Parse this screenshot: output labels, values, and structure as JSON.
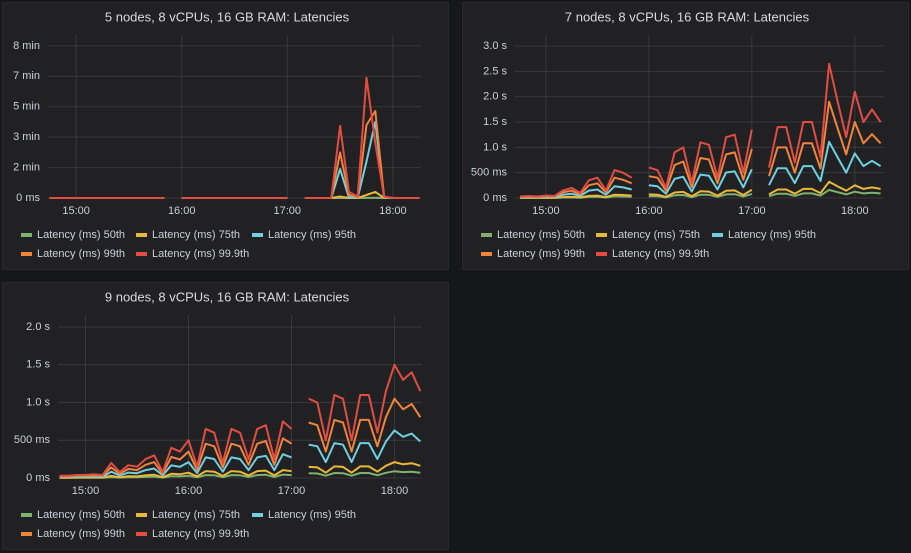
{
  "chart_data": [
    {
      "type": "line",
      "title": "5 nodes, 8 vCPUs, 16 GB RAM: Latencies",
      "grid": true,
      "legend": "bottom",
      "x": [
        "14:45",
        "14:50",
        "14:55",
        "15:00",
        "15:05",
        "15:10",
        "15:15",
        "15:20",
        "15:25",
        "15:30",
        "15:35",
        "15:40",
        "15:45",
        "15:50",
        "15:55",
        "16:00",
        "16:05",
        "16:10",
        "16:15",
        "16:20",
        "16:25",
        "16:30",
        "16:35",
        "16:40",
        "16:45",
        "16:50",
        "16:55",
        "17:00",
        "17:05",
        "17:10",
        "17:15",
        "17:20",
        "17:25",
        "17:30",
        "17:35",
        "17:40",
        "17:45",
        "17:50",
        "17:55",
        "18:00",
        "18:05",
        "18:10",
        "18:15"
      ],
      "xlim": [
        "14:44",
        "18:16"
      ],
      "xticks": [
        "15:00",
        "16:00",
        "17:00",
        "18:00"
      ],
      "ylim": [
        0,
        516000
      ],
      "yticks": [
        {
          "value": 0,
          "label": "0 ms"
        },
        {
          "value": 100000,
          "label": "2 min"
        },
        {
          "value": 200000,
          "label": "3 min"
        },
        {
          "value": 300000,
          "label": "5 min"
        },
        {
          "value": 400000,
          "label": "7 min"
        },
        {
          "value": 500000,
          "label": "8 min"
        }
      ],
      "series": [
        {
          "name": "Latency (ms) 50th",
          "color": "#7eb26d",
          "values": [
            5,
            5,
            5,
            5,
            5,
            5,
            5,
            5,
            5,
            5,
            5,
            5,
            5,
            5,
            null,
            5,
            5,
            5,
            5,
            5,
            5,
            5,
            5,
            5,
            5,
            5,
            5,
            5,
            null,
            5,
            5,
            5,
            5,
            200,
            20,
            10,
            300,
            500,
            10,
            5,
            5,
            5,
            5
          ]
        },
        {
          "name": "Latency (ms) 75th",
          "color": "#eab839",
          "values": [
            10,
            10,
            10,
            10,
            10,
            10,
            10,
            10,
            10,
            10,
            10,
            10,
            10,
            10,
            null,
            10,
            10,
            10,
            10,
            10,
            10,
            10,
            10,
            10,
            10,
            10,
            10,
            10,
            null,
            10,
            10,
            10,
            10,
            5000,
            100,
            50,
            10000,
            20000,
            50,
            10,
            10,
            10,
            10
          ]
        },
        {
          "name": "Latency (ms) 95th",
          "color": "#6ed0e0",
          "values": [
            30,
            30,
            30,
            30,
            30,
            30,
            30,
            30,
            30,
            30,
            30,
            30,
            30,
            30,
            null,
            30,
            30,
            30,
            30,
            30,
            30,
            30,
            30,
            30,
            30,
            30,
            30,
            30,
            null,
            30,
            30,
            30,
            30,
            95000,
            2000,
            1000,
            120000,
            250000,
            1000,
            30,
            30,
            30,
            30
          ]
        },
        {
          "name": "Latency (ms) 99th",
          "color": "#ef843c",
          "values": [
            60,
            60,
            60,
            60,
            60,
            60,
            60,
            60,
            60,
            60,
            60,
            60,
            60,
            60,
            null,
            60,
            60,
            60,
            60,
            60,
            60,
            60,
            60,
            60,
            60,
            60,
            60,
            60,
            null,
            60,
            60,
            60,
            60,
            150000,
            10000,
            3000,
            240000,
            286000,
            3000,
            60,
            60,
            60,
            60
          ]
        },
        {
          "name": "Latency (ms) 99.9th",
          "color": "#e24d42",
          "values": [
            150,
            150,
            150,
            150,
            150,
            150,
            150,
            150,
            150,
            150,
            150,
            150,
            150,
            150,
            null,
            150,
            150,
            150,
            150,
            150,
            150,
            150,
            150,
            150,
            150,
            150,
            150,
            150,
            null,
            150,
            150,
            150,
            150,
            237000,
            20000,
            5000,
            395000,
            180000,
            5000,
            150,
            150,
            150,
            150
          ]
        }
      ]
    },
    {
      "type": "line",
      "title": "7 nodes, 8 vCPUs, 16 GB RAM: Latencies",
      "grid": true,
      "legend": "bottom",
      "x": [
        "14:45",
        "14:50",
        "14:55",
        "15:00",
        "15:05",
        "15:10",
        "15:15",
        "15:20",
        "15:25",
        "15:30",
        "15:35",
        "15:40",
        "15:45",
        "15:50",
        "15:55",
        "16:00",
        "16:05",
        "16:10",
        "16:15",
        "16:20",
        "16:25",
        "16:30",
        "16:35",
        "16:40",
        "16:45",
        "16:50",
        "16:55",
        "17:00",
        "17:05",
        "17:10",
        "17:15",
        "17:20",
        "17:25",
        "17:30",
        "17:35",
        "17:40",
        "17:45",
        "17:50",
        "17:55",
        "18:00",
        "18:05",
        "18:10",
        "18:15"
      ],
      "xlim": [
        "14:42",
        "18:17"
      ],
      "xticks": [
        "15:00",
        "16:00",
        "17:00",
        "18:00"
      ],
      "ylim": [
        0,
        3100
      ],
      "yticks": [
        {
          "value": 0,
          "label": "0 ms"
        },
        {
          "value": 500,
          "label": "500 ms"
        },
        {
          "value": 1000,
          "label": "1.0 s"
        },
        {
          "value": 1500,
          "label": "1.5 s"
        },
        {
          "value": 2000,
          "label": "2.0 s"
        },
        {
          "value": 2500,
          "label": "2.5 s"
        },
        {
          "value": 3000,
          "label": "3.0 s"
        }
      ],
      "series": [
        {
          "name": "Latency (ms) 50th",
          "color": "#7eb26d",
          "values": [
            2,
            2,
            2,
            3,
            2,
            9,
            12,
            6,
            21,
            24,
            9,
            33,
            30,
            24,
            null,
            36,
            33,
            12,
            54,
            60,
            18,
            66,
            63,
            24,
            72,
            75,
            30,
            81,
            null,
            36,
            84,
            84,
            42,
            90,
            90,
            48,
            160,
            115,
            72,
            125,
            90,
            105,
            90
          ]
        },
        {
          "name": "Latency (ms) 75th",
          "color": "#eab839",
          "values": [
            4,
            5,
            4,
            6,
            5,
            18,
            24,
            12,
            42,
            48,
            18,
            66,
            60,
            48,
            null,
            72,
            66,
            24,
            108,
            120,
            36,
            132,
            126,
            48,
            144,
            150,
            60,
            162,
            null,
            72,
            168,
            168,
            84,
            180,
            180,
            96,
            320,
            230,
            145,
            250,
            180,
            210,
            180
          ]
        },
        {
          "name": "Latency (ms) 95th",
          "color": "#6ed0e0",
          "values": [
            13,
            17,
            13,
            21,
            17,
            63,
            84,
            42,
            147,
            168,
            63,
            231,
            210,
            168,
            null,
            252,
            231,
            84,
            378,
            420,
            126,
            462,
            441,
            168,
            504,
            525,
            210,
            567,
            null,
            252,
            588,
            588,
            294,
            630,
            630,
            336,
            1110,
            800,
            500,
            880,
            630,
            735,
            630
          ]
        },
        {
          "name": "Latency (ms) 99th",
          "color": "#ef843c",
          "values": [
            20,
            30,
            20,
            35,
            30,
            110,
            145,
            70,
            250,
            290,
            110,
            400,
            360,
            290,
            null,
            430,
            400,
            145,
            650,
            720,
            215,
            790,
            760,
            290,
            860,
            900,
            360,
            970,
            null,
            430,
            1000,
            1000,
            500,
            1080,
            1080,
            580,
            1900,
            1370,
            860,
            1500,
            1080,
            1260,
            1080
          ]
        },
        {
          "name": "Latency (ms) 99.9th",
          "color": "#e24d42",
          "values": [
            30,
            40,
            30,
            50,
            40,
            150,
            200,
            100,
            350,
            400,
            150,
            550,
            500,
            400,
            null,
            600,
            550,
            200,
            900,
            1000,
            300,
            1100,
            1050,
            400,
            1200,
            1250,
            500,
            1350,
            null,
            600,
            1400,
            1400,
            700,
            1500,
            1500,
            800,
            2650,
            1900,
            1200,
            2100,
            1500,
            1750,
            1500
          ]
        }
      ]
    },
    {
      "type": "line",
      "title": "9 nodes, 8 vCPUs, 16 GB RAM: Latencies",
      "grid": true,
      "legend": "bottom",
      "x": [
        "14:45",
        "14:50",
        "14:55",
        "15:00",
        "15:05",
        "15:10",
        "15:15",
        "15:20",
        "15:25",
        "15:30",
        "15:35",
        "15:40",
        "15:45",
        "15:50",
        "15:55",
        "16:00",
        "16:05",
        "16:10",
        "16:15",
        "16:20",
        "16:25",
        "16:30",
        "16:35",
        "16:40",
        "16:45",
        "16:50",
        "16:55",
        "17:00",
        "17:05",
        "17:10",
        "17:15",
        "17:20",
        "17:25",
        "17:30",
        "17:35",
        "17:40",
        "17:45",
        "17:50",
        "17:55",
        "18:00",
        "18:05",
        "18:10",
        "18:15"
      ],
      "xlim": [
        "14:44",
        "18:16"
      ],
      "xticks": [
        "15:00",
        "16:00",
        "17:00",
        "18:00"
      ],
      "ylim": [
        0,
        2080
      ],
      "yticks": [
        {
          "value": 0,
          "label": "0 ms"
        },
        {
          "value": 500,
          "label": "500 ms"
        },
        {
          "value": 1000,
          "label": "1.0 s"
        },
        {
          "value": 1500,
          "label": "1.5 s"
        },
        {
          "value": 2000,
          "label": "2.0 s"
        }
      ],
      "series": [
        {
          "name": "Latency (ms) 50th",
          "color": "#7eb26d",
          "values": [
            2,
            2,
            2,
            2,
            3,
            2,
            12,
            5,
            10,
            9,
            15,
            18,
            5,
            24,
            21,
            30,
            9,
            39,
            36,
            12,
            39,
            36,
            15,
            39,
            42,
            15,
            45,
            39,
            null,
            63,
            60,
            30,
            66,
            63,
            30,
            66,
            66,
            36,
            69,
            90,
            78,
            84,
            69
          ]
        },
        {
          "name": "Latency (ms) 75th",
          "color": "#eab839",
          "values": [
            4,
            4,
            6,
            6,
            7,
            6,
            28,
            11,
            24,
            21,
            35,
            42,
            11,
            56,
            49,
            70,
            21,
            91,
            84,
            28,
            91,
            84,
            35,
            91,
            98,
            35,
            105,
            91,
            null,
            147,
            140,
            70,
            154,
            147,
            70,
            154,
            154,
            84,
            161,
            210,
            182,
            196,
            161
          ]
        },
        {
          "name": "Latency (ms) 95th",
          "color": "#6ed0e0",
          "values": [
            13,
            13,
            17,
            17,
            21,
            17,
            84,
            34,
            71,
            63,
            105,
            126,
            34,
            168,
            147,
            210,
            63,
            273,
            252,
            84,
            273,
            252,
            105,
            273,
            294,
            105,
            315,
            273,
            null,
            441,
            420,
            210,
            462,
            441,
            210,
            462,
            462,
            252,
            483,
            630,
            546,
            588,
            483
          ]
        },
        {
          "name": "Latency (ms) 99th",
          "color": "#ef843c",
          "values": [
            20,
            20,
            30,
            30,
            35,
            30,
            140,
            55,
            120,
            105,
            175,
            210,
            55,
            280,
            245,
            350,
            105,
            455,
            420,
            140,
            455,
            420,
            175,
            455,
            490,
            175,
            525,
            455,
            null,
            735,
            700,
            350,
            770,
            735,
            350,
            770,
            770,
            420,
            805,
            1050,
            910,
            980,
            805
          ]
        },
        {
          "name": "Latency (ms) 99.9th",
          "color": "#e24d42",
          "values": [
            30,
            30,
            40,
            40,
            50,
            40,
            200,
            80,
            170,
            150,
            250,
            300,
            80,
            400,
            350,
            500,
            150,
            650,
            600,
            200,
            650,
            600,
            250,
            650,
            700,
            250,
            750,
            650,
            null,
            1050,
            1000,
            500,
            1100,
            1050,
            500,
            1100,
            1100,
            600,
            1150,
            1500,
            1300,
            1400,
            1150
          ]
        }
      ]
    }
  ]
}
